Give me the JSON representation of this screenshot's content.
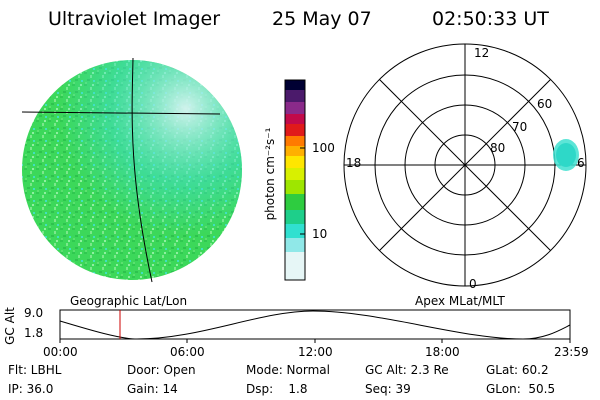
{
  "header": {
    "title": "Ultraviolet Imager",
    "date": "25 May 07",
    "time": "02:50:33 UT"
  },
  "colorbar": {
    "axis_label": "photon cm⁻²s⁻¹",
    "ticks": [
      "100",
      "10"
    ],
    "scale": "log"
  },
  "polar": {
    "mlt_labels": {
      "top": "12",
      "left": "18",
      "right": "6",
      "bottom": "0"
    },
    "mlat_labels": [
      "60",
      "70",
      "80"
    ]
  },
  "panel_labels": {
    "left": "Geographic Lat/Lon",
    "right": "Apex MLat/MLT"
  },
  "altitude_plot": {
    "ylabel": "GC Alt",
    "yticks": [
      "9.0",
      "1.8"
    ],
    "xticks": [
      "00:00",
      "06:00",
      "12:00",
      "18:00",
      "23:59"
    ],
    "current_time_marker": "02:50"
  },
  "info": {
    "flt": "Flt: LBHL",
    "door": "Door: Open",
    "mode": "Mode: Normal",
    "gc_alt": "GC Alt: 2.3 Re",
    "glat": "GLat:  60.2",
    "ip": "IP: 36.0",
    "gain": "Gain: 14",
    "dsp": "Dsp:    1.8",
    "seq": "Seq: 39",
    "glon": "GLon:  50.5"
  },
  "colors": {
    "image_green": "#3cd85a",
    "image_cyan": "#40e0d0",
    "marker_red": "#cc0000"
  }
}
